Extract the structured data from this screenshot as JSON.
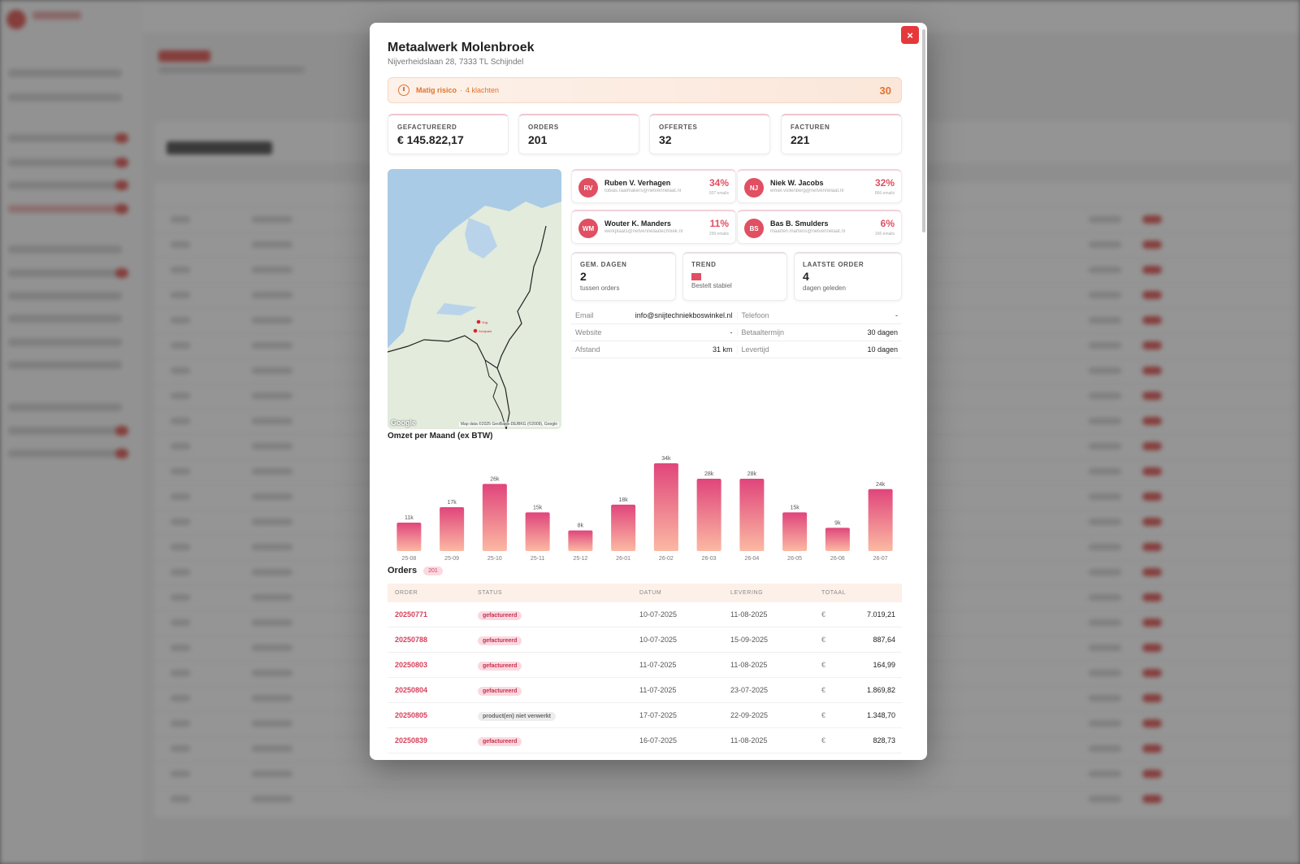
{
  "company": {
    "name": "Metaalwerk Molenbroek",
    "address": "Nijverheidslaan 28, 7333 TL Schijndel"
  },
  "close_label": "×",
  "risk": {
    "label": "Matig risico",
    "separator": "·",
    "detail": "4 klachten",
    "score": "30",
    "color": "#e0742f"
  },
  "stats": [
    {
      "label": "GEFACTUREERD",
      "value": "€ 145.822,17"
    },
    {
      "label": "ORDERS",
      "value": "201"
    },
    {
      "label": "OFFERTES",
      "value": "32"
    },
    {
      "label": "FACTUREN",
      "value": "221"
    }
  ],
  "map": {
    "google": "Google",
    "attribution": "Map data ©2025 GeoBasis-DE/BKG (©2009), Google",
    "pins": [
      "Vug",
      "Schijndel"
    ]
  },
  "contacts": [
    {
      "initials": "RV",
      "name": "Ruben V. Verhagen",
      "email": "tobias.raalmakers@rietvennelaat.nl",
      "pct": "34%",
      "emails": "937 emails"
    },
    {
      "initials": "NJ",
      "name": "Niek W. Jacobs",
      "email": "emiel.vollenberg@rietvennelaat.nl",
      "pct": "32%",
      "emails": "866 emails"
    },
    {
      "initials": "WM",
      "name": "Wouter K. Manders",
      "email": "werkplaats@rietvennelaatechniek.nl",
      "pct": "11%",
      "emails": "299 emails"
    },
    {
      "initials": "BS",
      "name": "Bas B. Smulders",
      "email": "maarten.martens@rietvennelaat.nl",
      "pct": "6%",
      "emails": "166 emails"
    }
  ],
  "metrics": {
    "gem": {
      "label": "GEM. DAGEN",
      "value": "2",
      "sub": "tussen orders"
    },
    "trend": {
      "label": "TREND",
      "sub": "Bestelt stabiel",
      "color": "#e14f62"
    },
    "last": {
      "label": "LAATSTE ORDER",
      "value": "4",
      "sub": "dagen geleden"
    }
  },
  "info": [
    {
      "k1": "Email",
      "v1": "info@snijtechniekboswinkel.nl",
      "k2": "Telefoon",
      "v2": "-"
    },
    {
      "k1": "Website",
      "v1": "-",
      "k2": "Betaaltermijn",
      "v2": "30 dagen"
    },
    {
      "k1": "Afstand",
      "v1": "31 km",
      "k2": "Levertijd",
      "v2": "10 dagen"
    }
  ],
  "chart_title": "Omzet per Maand (ex BTW)",
  "chart_data": {
    "type": "bar",
    "title": "Omzet per Maand (ex BTW)",
    "categories": [
      "25-08",
      "25-09",
      "25-10",
      "25-11",
      "25-12",
      "26-01",
      "26-02",
      "26-03",
      "26-04",
      "26-05",
      "26-06",
      "26-07"
    ],
    "values": [
      11,
      17,
      26,
      15,
      8,
      18,
      34,
      28,
      28,
      15,
      9,
      24
    ],
    "labels": [
      "11k",
      "17k",
      "26k",
      "15k",
      "8k",
      "18k",
      "34k",
      "28k",
      "28k",
      "15k",
      "9k",
      "24k"
    ],
    "ylim": [
      0,
      34
    ],
    "colors": {
      "top": "#e0457b",
      "bottom": "#fbb9a3"
    }
  },
  "orders": {
    "title": "Orders",
    "count": "201",
    "headers": [
      "ORDER",
      "STATUS",
      "DATUM",
      "LEVERING",
      "TOTAAL"
    ],
    "rows": [
      {
        "id": "20250771",
        "status": "gefactureerd",
        "datum": "10-07-2025",
        "levering": "11-08-2025",
        "cur": "€",
        "totaal": "7.019,21"
      },
      {
        "id": "20250788",
        "status": "gefactureerd",
        "datum": "10-07-2025",
        "levering": "15-09-2025",
        "cur": "€",
        "totaal": "887,64"
      },
      {
        "id": "20250803",
        "status": "gefactureerd",
        "datum": "11-07-2025",
        "levering": "11-08-2025",
        "cur": "€",
        "totaal": "164,99"
      },
      {
        "id": "20250804",
        "status": "gefactureerd",
        "datum": "11-07-2025",
        "levering": "23-07-2025",
        "cur": "€",
        "totaal": "1.869,82"
      },
      {
        "id": "20250805",
        "status": "product(en) niet verwerkt",
        "datum": "17-07-2025",
        "levering": "22-09-2025",
        "cur": "€",
        "totaal": "1.348,70"
      },
      {
        "id": "20250839",
        "status": "gefactureerd",
        "datum": "16-07-2025",
        "levering": "11-08-2025",
        "cur": "€",
        "totaal": "828,73"
      }
    ]
  }
}
